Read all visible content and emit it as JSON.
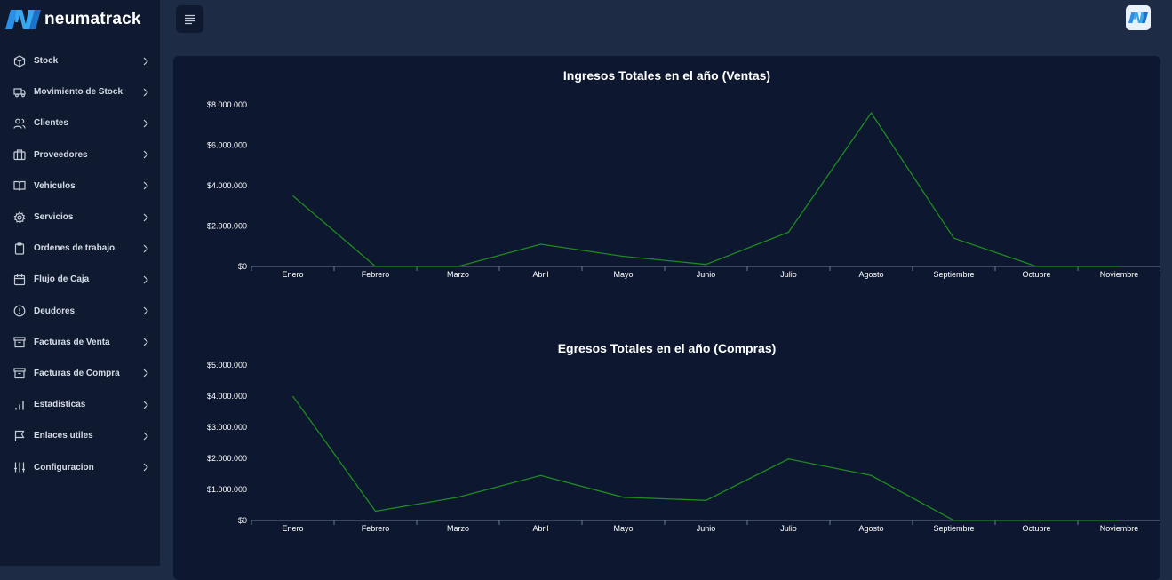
{
  "brand": {
    "name": "neumatrack"
  },
  "sidebar": {
    "items": [
      {
        "label": "Stock",
        "icon": "package-icon"
      },
      {
        "label": "Movimiento de Stock",
        "icon": "truck-icon"
      },
      {
        "label": "Clientes",
        "icon": "users-icon"
      },
      {
        "label": "Proveedores",
        "icon": "briefcase-icon"
      },
      {
        "label": "Vehiculos",
        "icon": "book-icon"
      },
      {
        "label": "Servicios",
        "icon": "gear-icon"
      },
      {
        "label": "Ordenes de trabajo",
        "icon": "clipboard-icon"
      },
      {
        "label": "Flujo de Caja",
        "icon": "calendar-icon"
      },
      {
        "label": "Deudores",
        "icon": "alert-circle-icon"
      },
      {
        "label": "Facturas de Venta",
        "icon": "archive-icon"
      },
      {
        "label": "Facturas de Compra",
        "icon": "archive-icon"
      },
      {
        "label": "Estadisticas",
        "icon": "bar-chart-icon"
      },
      {
        "label": "Enlaces utiles",
        "icon": "flag-icon"
      },
      {
        "label": "Configuracion",
        "icon": "sliders-icon"
      }
    ]
  },
  "colors": {
    "line": "#1f8a1f",
    "axis": "#6b7890",
    "card": "#0d1830",
    "sidebar": "#0f1a30",
    "accent": "#1b8fe0"
  },
  "chart_data": [
    {
      "type": "line",
      "title": "Ingresos Totales en el año (Ventas)",
      "categories": [
        "Enero",
        "Febrero",
        "Marzo",
        "Abril",
        "Mayo",
        "Junio",
        "Julio",
        "Agosto",
        "Septiembre",
        "Octubre",
        "Noviembre"
      ],
      "values": [
        3500000,
        0,
        0,
        1100000,
        500000,
        100000,
        1700000,
        7600000,
        1400000,
        0,
        0
      ],
      "yticks": [
        "$0",
        "$2.000.000",
        "$4.000.000",
        "$6.000.000",
        "$8.000.000"
      ],
      "ylim": [
        0,
        8000000
      ]
    },
    {
      "type": "line",
      "title": "Egresos Totales en el año (Compras)",
      "categories": [
        "Enero",
        "Febrero",
        "Marzo",
        "Abril",
        "Mayo",
        "Junio",
        "Julio",
        "Agosto",
        "Septiembre",
        "Octubre",
        "Noviembre"
      ],
      "values": [
        4000000,
        300000,
        750000,
        1450000,
        750000,
        650000,
        1980000,
        1450000,
        0,
        0,
        0
      ],
      "yticks": [
        "$0",
        "$1.000.000",
        "$2.000.000",
        "$3.000.000",
        "$4.000.000",
        "$5.000.000"
      ],
      "ylim": [
        0,
        5000000
      ]
    }
  ]
}
